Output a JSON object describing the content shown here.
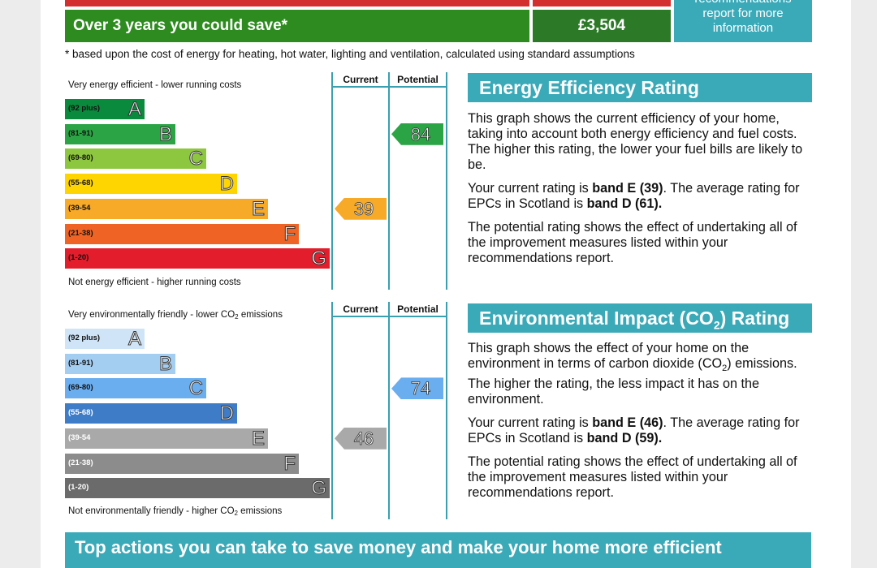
{
  "savings": {
    "label": "Over 3 years you could save*",
    "value": "£3,504",
    "recommendations_partial": "recommendations",
    "recommendations_text": "report for more information"
  },
  "footnote": "* based upon the cost of energy for heating, hot water, lighting and ventilation, calculated using standard assumptions",
  "energy_graph": {
    "top_label": "Very energy efficient - lower running costs",
    "bottom_label": "Not energy efficient - higher running costs",
    "col_current": "Current",
    "col_potential": "Potential",
    "bands": [
      {
        "range": "(92 plus)",
        "letter": "A",
        "color": "#0a8a3c"
      },
      {
        "range": "(81-91)",
        "letter": "B",
        "color": "#2aa444"
      },
      {
        "range": "(69-80)",
        "letter": "C",
        "color": "#8dc63f"
      },
      {
        "range": "(55-68)",
        "letter": "D",
        "color": "#ffd500"
      },
      {
        "range": "(39-54",
        "letter": "E",
        "color": "#f7a928"
      },
      {
        "range": "(21-38)",
        "letter": "F",
        "color": "#ef6424"
      },
      {
        "range": "(1-20)",
        "letter": "G",
        "color": "#e31d2b"
      }
    ],
    "current": {
      "value": "39",
      "color": "#f7a928"
    },
    "potential": {
      "value": "84",
      "color": "#2aa444"
    }
  },
  "env_graph": {
    "top_label_pre": "Very environmentally friendly - lower CO",
    "top_label_sub": "2",
    "top_label_post": " emissions",
    "bottom_label_pre": "Not environmentally friendly - higher CO",
    "bottom_label_sub": "2",
    "bottom_label_post": " emissions",
    "col_current": "Current",
    "col_potential": "Potential",
    "bands": [
      {
        "range": "(92 plus)",
        "letter": "A",
        "color": "#cfe4f7"
      },
      {
        "range": "(81-91)",
        "letter": "B",
        "color": "#a4cdf2"
      },
      {
        "range": "(69-80)",
        "letter": "C",
        "color": "#6aaef0"
      },
      {
        "range": "(55-68)",
        "letter": "D",
        "color": "#3f7cc7"
      },
      {
        "range": "(39-54",
        "letter": "E",
        "color": "#a9a9a9"
      },
      {
        "range": "(21-38)",
        "letter": "F",
        "color": "#8c8c8c"
      },
      {
        "range": "(1-20)",
        "letter": "G",
        "color": "#6b6b6b"
      }
    ],
    "current": {
      "value": "46",
      "color": "#a9a9a9"
    },
    "potential": {
      "value": "74",
      "color": "#6aaef0"
    }
  },
  "energy_panel": {
    "title": "Energy Efficiency Rating",
    "p1": "This graph shows the current efficiency of your home, taking into account both energy efficiency and fuel costs. The higher this rating, the lower your fuel bills are likely to be.",
    "p2_pre": "Your current rating is ",
    "p2_b1": "band E (39)",
    "p2_mid": ". The average rating for EPCs in Scotland is ",
    "p2_b2": "band D (61).",
    "p3": "The potential rating shows the effect of undertaking all of the improvement measures listed within your recommendations report."
  },
  "env_panel": {
    "title_pre": "Environmental Impact (CO",
    "title_sub": "2",
    "title_post": ") Rating",
    "p1_pre": "This graph shows the effect of your home on the environment in terms of carbon dioxide (CO",
    "p1_sub": "2",
    "p1_post": ") emissions. The higher the rating, the less impact it has on the environment.",
    "p2_pre": "Your current rating is ",
    "p2_b1": "band E (46)",
    "p2_mid": ". The average rating for EPCs in Scotland is ",
    "p2_b2": "band D (59).",
    "p3": "The potential rating shows the effect of undertaking all of the improvement measures listed within your recommendations report."
  },
  "bottom_banner": "Top actions you can take to save money and make your home more efficient"
}
